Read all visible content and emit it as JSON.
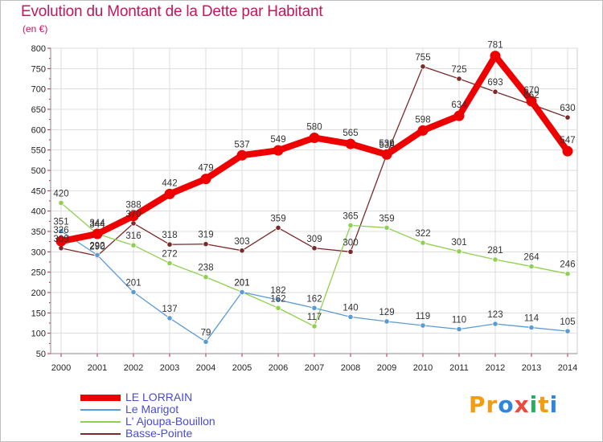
{
  "header": {
    "title": "Evolution du Montant de la Dette par Habitant",
    "unit": "(en €)"
  },
  "logo": {
    "text": "Proxiti",
    "letters": [
      "P",
      "r",
      "o",
      "x",
      "i",
      "t",
      "i"
    ],
    "colors": [
      "#f39c12",
      "#f39c12",
      "#2e86de",
      "#e74c3c",
      "#27ae60",
      "#f39c12",
      "#2e86de"
    ]
  },
  "chart_data": {
    "type": "line",
    "title": "Evolution du Montant de la Dette par Habitant",
    "ylabel": "(en €)",
    "xlabel": "",
    "ylim": [
      50,
      800
    ],
    "yticks": [
      50,
      100,
      150,
      200,
      250,
      300,
      350,
      400,
      450,
      500,
      550,
      600,
      650,
      700,
      750,
      800
    ],
    "x": [
      2000,
      2001,
      2002,
      2003,
      2004,
      2005,
      2006,
      2007,
      2008,
      2009,
      2010,
      2011,
      2012,
      2013,
      2014
    ],
    "grid": true,
    "legend_position": "bottom-left",
    "series": [
      {
        "name": "LE LORRAIN",
        "color": "#ee0000",
        "values": [
          326,
          344,
          388,
          442,
          479,
          537,
          549,
          580,
          565,
          539,
          598,
          634,
          781,
          670,
          547
        ]
      },
      {
        "name": "Le Marigot",
        "color": "#5b9bd5",
        "values": [
          351,
          292,
          201,
          137,
          79,
          201,
          182,
          162,
          140,
          129,
          119,
          110,
          123,
          114,
          105
        ]
      },
      {
        "name": "L' Ajoupa-Bouillon",
        "color": "#8fd14f",
        "values": [
          420,
          344,
          316,
          272,
          238,
          201,
          162,
          117,
          365,
          359,
          322,
          301,
          281,
          264,
          246
        ]
      },
      {
        "name": "Basse-Pointe",
        "color": "#7b2a2a",
        "values": [
          309,
          290,
          370,
          318,
          319,
          303,
          359,
          309,
          300,
          539,
          755,
          725,
          693,
          662,
          630
        ]
      }
    ]
  }
}
